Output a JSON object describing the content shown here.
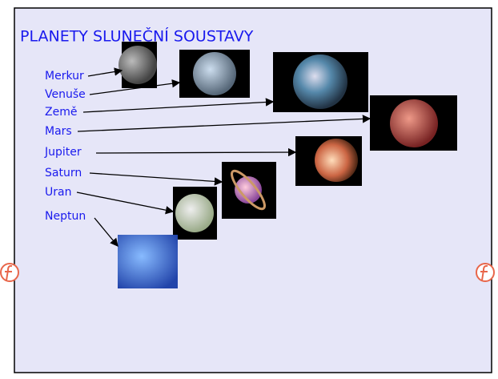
{
  "title": "PLANETY SLUNEČNÍ SOUSTAVY",
  "planets": [
    "Merkur",
    "Venuše",
    "Země",
    "Mars",
    "Jupiter",
    "Saturn",
    "Uran",
    "Neptun"
  ]
}
